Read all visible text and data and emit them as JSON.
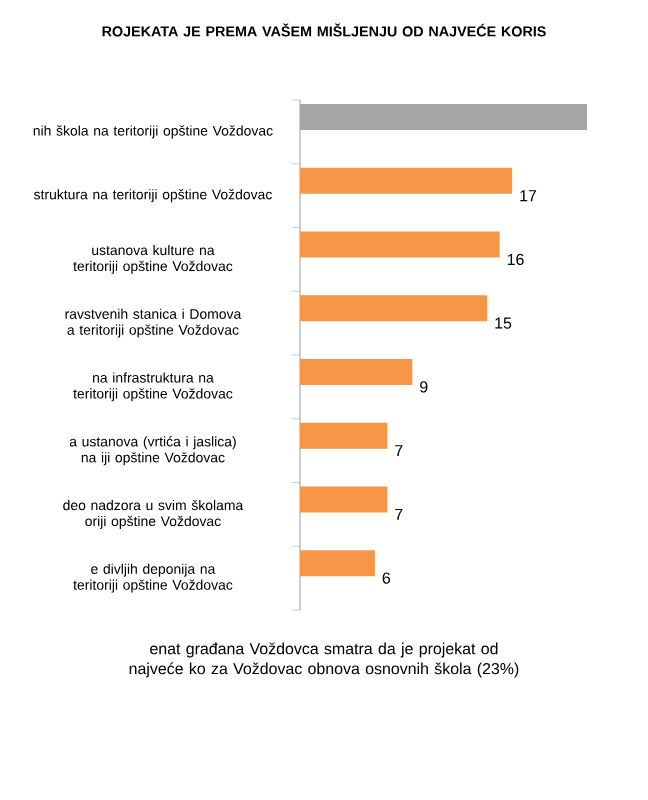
{
  "chart_data": {
    "type": "bar",
    "orientation": "horizontal",
    "title": "ROJEKATA JE PREMA VAŠEM MIŠLJENJU OD NAJVEĆE KORIS",
    "categories": [
      "nih škola na teritoriji opštine Voždovac",
      "struktura na teritoriji opštine Voždovac",
      "ustanova kulture na teritoriji opštine Voždovac",
      "ravstvenih stanica i Domova a teritoriji opštine Voždovac",
      "na infrastruktura na teritoriji opštine Voždovac",
      "a ustanova (vrtića i jaslica) na iji opštine Voždovac",
      "deo nadzora u svim školama oriji opštine Voždovac",
      "e divljih deponija na teritoriji opštine Voždovac"
    ],
    "values": [
      23,
      17,
      16,
      15,
      9,
      7,
      7,
      6
    ],
    "value_labels": [
      null,
      "17",
      "16",
      "15",
      "9",
      "7",
      "7",
      "6"
    ],
    "colors": [
      "#a5a5a5",
      "#f79646",
      "#f79646",
      "#f79646",
      "#f79646",
      "#f79646",
      "#f79646",
      "#f79646"
    ],
    "annotations": [
      "enat građana Voždovca smatra da je projekat od najveće ko za Voždovac obnova osnovnih škola (23%)"
    ]
  }
}
